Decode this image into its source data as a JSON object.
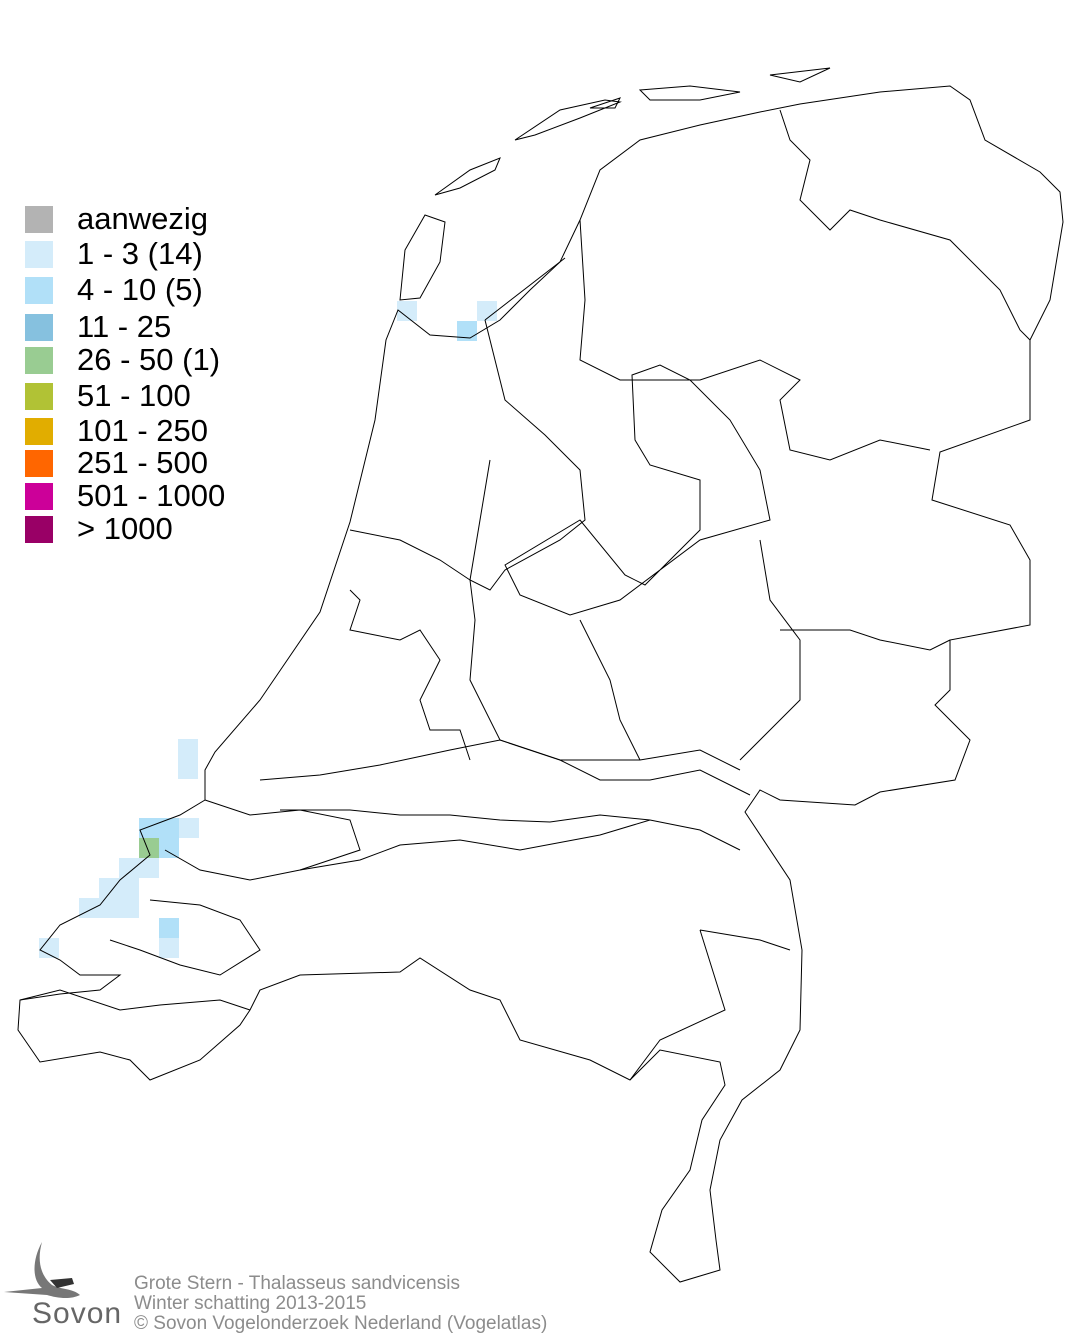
{
  "legend": {
    "items": [
      {
        "label": "aanwezig",
        "color": "#b3b3b3"
      },
      {
        "label": "1 - 3 (14)",
        "color": "#d4ecfa"
      },
      {
        "label": "4 - 10 (5)",
        "color": "#b1e0f8"
      },
      {
        "label": "11 - 25",
        "color": "#86c1df"
      },
      {
        "label": "26 - 50 (1)",
        "color": "#99cc92"
      },
      {
        "label": "51 - 100",
        "color": "#b1c235"
      },
      {
        "label": "101 - 250",
        "color": "#e1ad00"
      },
      {
        "label": "251 - 500",
        "color": "#ff6600"
      },
      {
        "label": "501 - 1000",
        "color": "#cc0099"
      },
      {
        "label": "> 1000",
        "color": "#990066"
      }
    ]
  },
  "map": {
    "outline_color": "#000000",
    "occupied_cells": {
      "1 - 3": 14,
      "4 - 10": 5,
      "26 - 50": 1
    }
  },
  "footer": {
    "species": "Grote Stern - Thalasseus sandvicensis",
    "season": "Winter schatting 2013-2015",
    "copyright": "© Sovon Vogelonderzoek Nederland (Vogelatlas)"
  },
  "logo": {
    "text": "Sovon",
    "icon": "swallow-icon"
  }
}
